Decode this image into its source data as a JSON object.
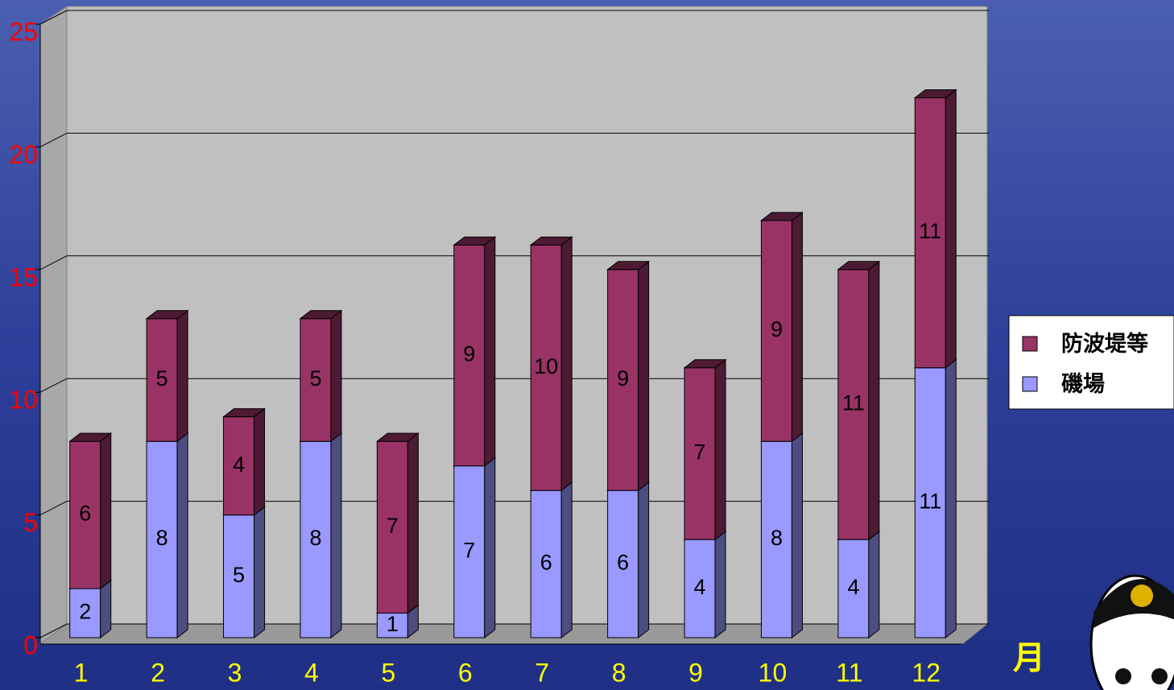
{
  "chart_data": {
    "type": "bar",
    "stacked": true,
    "x_label": "月",
    "categories": [
      "1",
      "2",
      "3",
      "4",
      "5",
      "6",
      "7",
      "8",
      "9",
      "10",
      "11",
      "12"
    ],
    "series": [
      {
        "name": "磯場",
        "color": "#9999ff",
        "side": "#4d4d80",
        "values": [
          2,
          8,
          5,
          8,
          1,
          7,
          6,
          6,
          4,
          8,
          4,
          11
        ]
      },
      {
        "name": "防波堤等",
        "color": "#993366",
        "side": "#4d1a33",
        "values": [
          6,
          5,
          4,
          5,
          7,
          9,
          10,
          9,
          7,
          9,
          11,
          11
        ]
      }
    ],
    "ylim": [
      0,
      25
    ],
    "yticks": [
      0,
      5,
      10,
      15,
      20,
      25
    ],
    "grid": true,
    "legend": "right"
  }
}
